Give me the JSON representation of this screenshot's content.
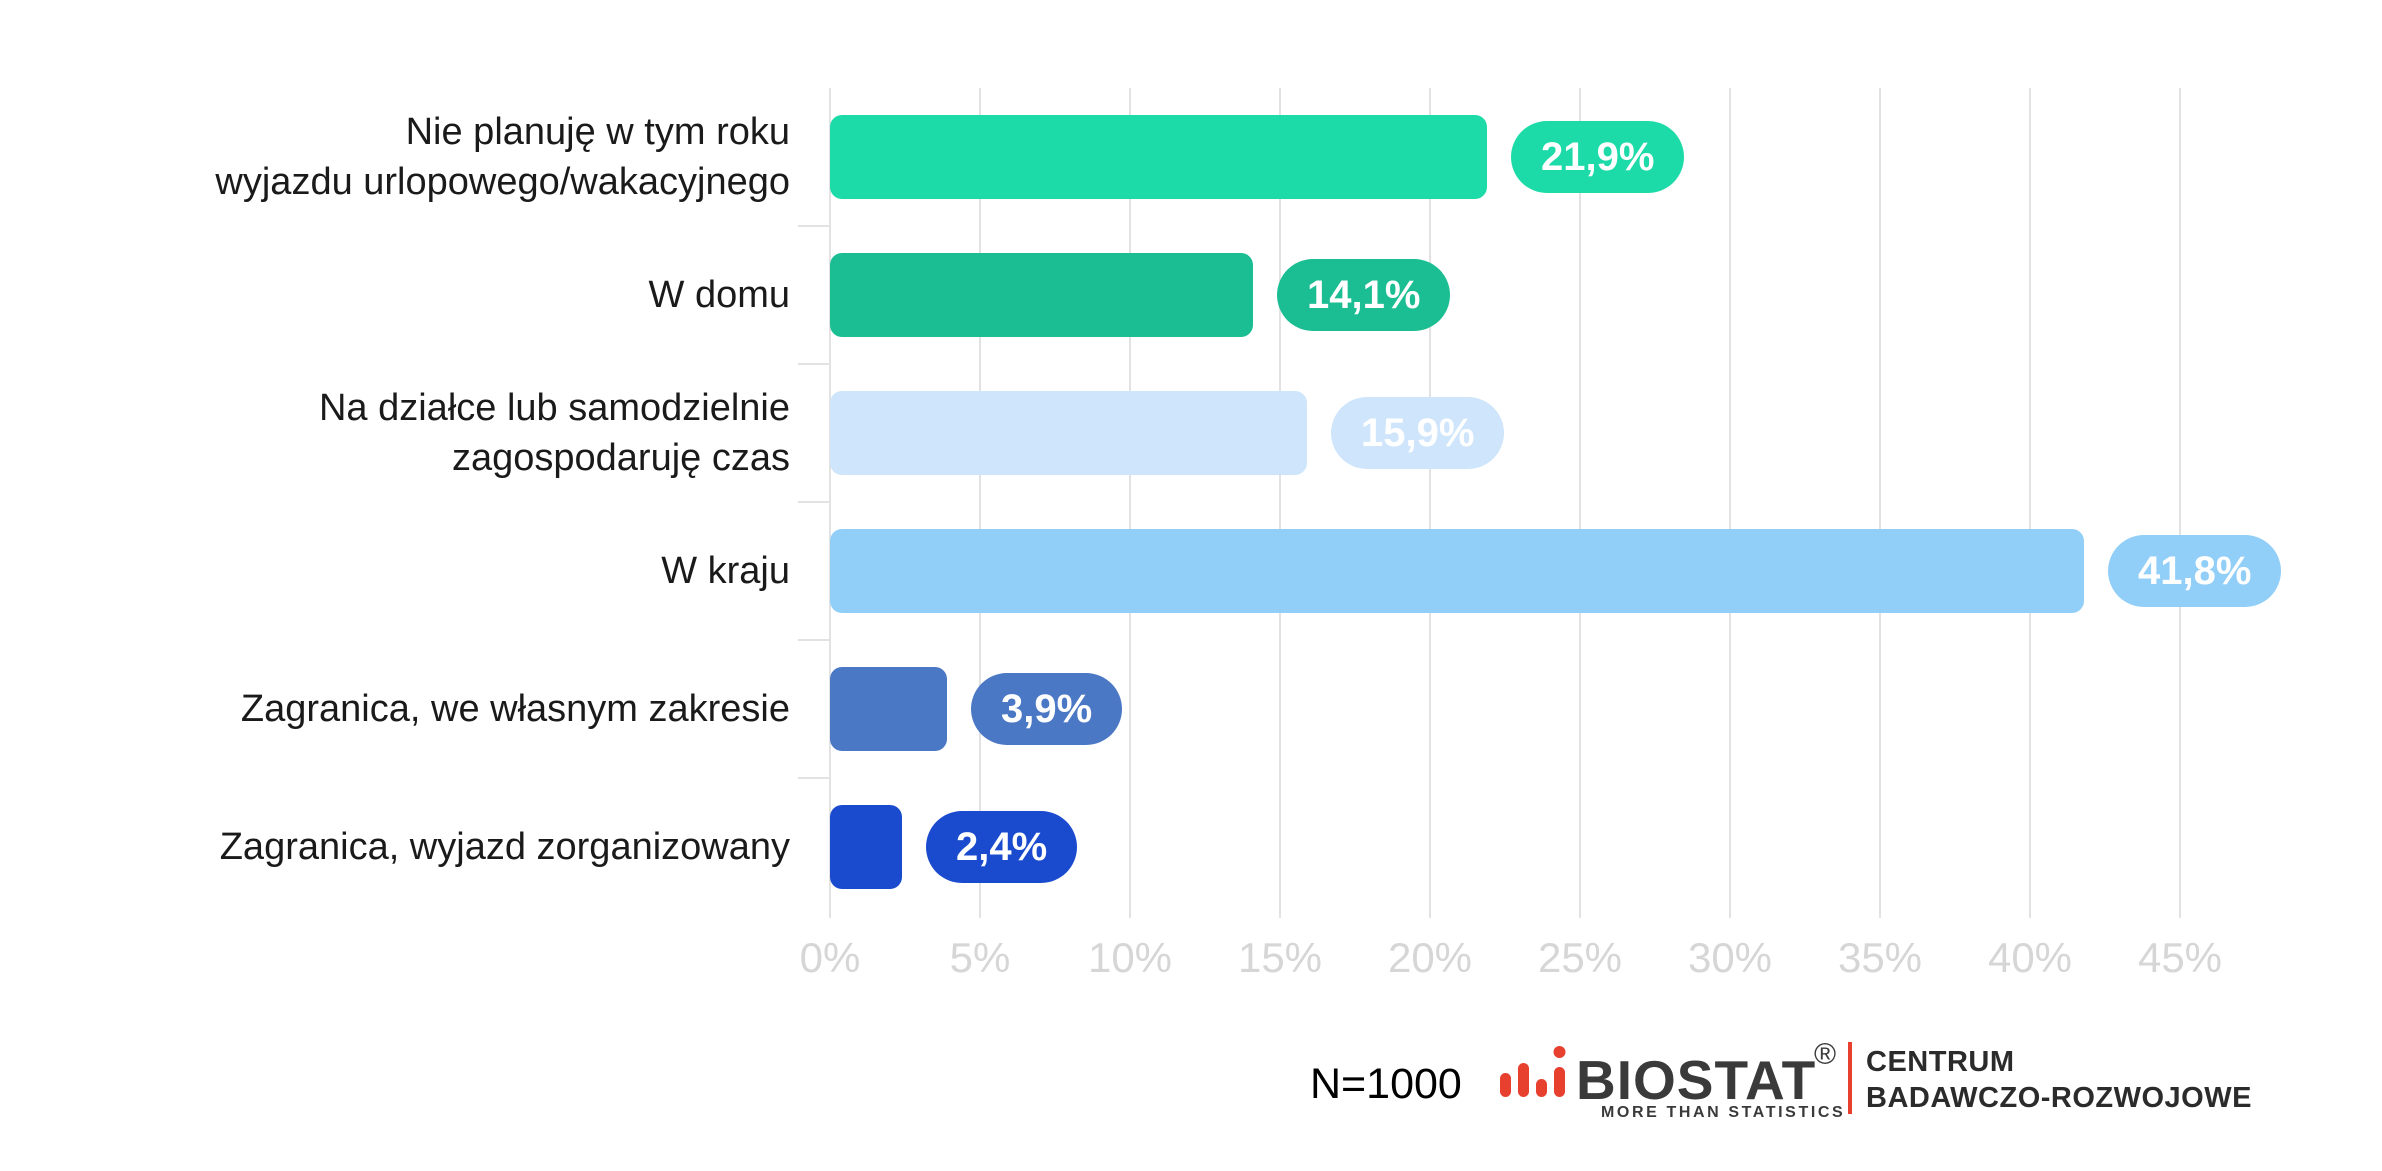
{
  "chart_data": {
    "type": "bar",
    "orientation": "horizontal",
    "title": "",
    "xlabel": "",
    "ylabel": "",
    "categories": [
      "Nie planuję w tym roku wyjazdu urlopowego/wakacyjnego",
      "W domu",
      "Na działce lub samodzielnie zagospodaruję czas",
      "W kraju",
      "Zagranica, we własnym zakresie",
      "Zagranica, wyjazd zorganizowany"
    ],
    "category_lines": [
      [
        "Nie planuję w tym roku",
        "wyjazdu urlopowego/wakacyjnego"
      ],
      [
        "W domu"
      ],
      [
        "Na działce lub samodzielnie",
        "zagospodaruję czas"
      ],
      [
        "W kraju"
      ],
      [
        "Zagranica, we własnym zakresie"
      ],
      [
        "Zagranica, wyjazd zorganizowany"
      ]
    ],
    "values": [
      21.9,
      14.1,
      15.9,
      41.8,
      3.9,
      2.4
    ],
    "value_labels": [
      "21,9%",
      "14,1%",
      "15,9%",
      "41,8%",
      "3,9%",
      "2,4%"
    ],
    "bar_colors": [
      "#1DDBA8",
      "#1BBD92",
      "#CEE5FB",
      "#92CFF8",
      "#4B78C5",
      "#1A4BCE"
    ],
    "x_ticks": [
      "0%",
      "5%",
      "10%",
      "15%",
      "20%",
      "25%",
      "30%",
      "35%",
      "40%",
      "45%"
    ],
    "xlim": [
      0,
      45
    ],
    "grid": true,
    "legend": false
  },
  "footer": {
    "sample_size": "N=1000",
    "logo": {
      "name": "BIOSTAT",
      "registered_mark": "®",
      "tagline": "MORE THAN STATISTICS",
      "org_line1": "CENTRUM",
      "org_line2": "BADAWCZO-ROZWOJOWE"
    }
  },
  "style_colors": {
    "background": "#FFFFFF",
    "grid": "#E2E2E2",
    "axis_label": "#D6D6D6",
    "category_label": "#1A1A1A",
    "pill_text": "#FFFFFF",
    "logo_accent": "#E8402F",
    "logo_text": "#3A3A3A"
  }
}
